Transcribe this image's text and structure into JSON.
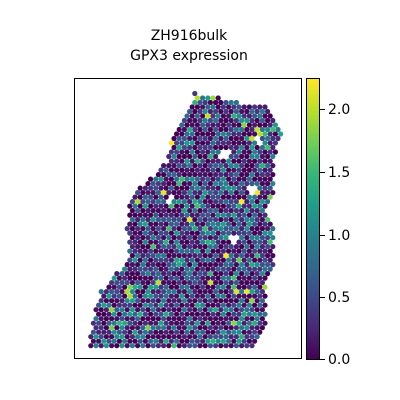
{
  "chart_data": {
    "type": "scatter",
    "title": "ZH916bulk",
    "subtitle": "GPX3 expression",
    "xlabel": "",
    "ylabel": "",
    "grid": false,
    "colormap": "viridis",
    "color_range": [
      0.0,
      2.2
    ],
    "colorbar": {
      "ticks": [
        0.0,
        0.5,
        1.0,
        1.5,
        2.0
      ],
      "tick_labels": [
        "0.0",
        "0.5",
        "1.0",
        "1.5",
        "2.0"
      ]
    },
    "axes_ticks_visible": false
  }
}
